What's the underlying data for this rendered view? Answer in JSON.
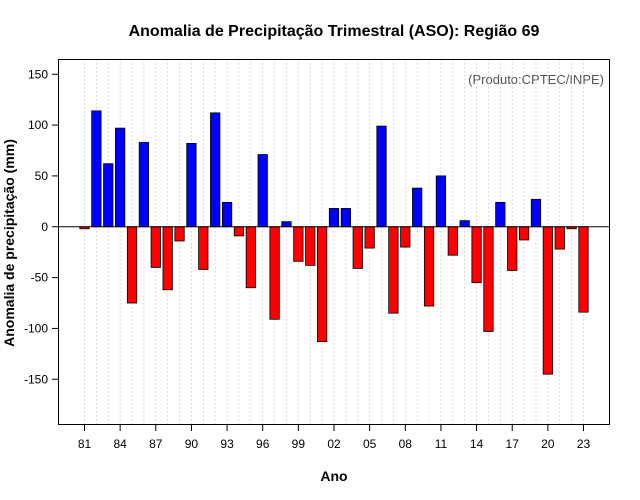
{
  "chart_data": {
    "type": "bar",
    "title": "Anomalia de Precipitação Trimestral (ASO): Região 69",
    "xlabel": "Ano",
    "ylabel": "Anomalia de precipitação (mm)",
    "credit": "(Produto:CPTEC/INPE)",
    "ylim": [
      -195,
      165
    ],
    "yticks": [
      -150,
      -100,
      -50,
      0,
      50,
      100,
      150
    ],
    "xticks": [
      "81",
      "84",
      "87",
      "90",
      "93",
      "96",
      "99",
      "02",
      "05",
      "08",
      "11",
      "14",
      "17",
      "20",
      "23"
    ],
    "grid": "vertical dotted",
    "colors": {
      "positive": "#0000ff",
      "negative": "#ff0000",
      "zero_line": "#000000",
      "grid": "#bbbbbb"
    },
    "categories": [
      "1981",
      "1982",
      "1983",
      "1984",
      "1985",
      "1986",
      "1987",
      "1988",
      "1989",
      "1990",
      "1991",
      "1992",
      "1993",
      "1994",
      "1995",
      "1996",
      "1997",
      "1998",
      "1999",
      "2000",
      "2001",
      "2002",
      "2003",
      "2004",
      "2005",
      "2006",
      "2007",
      "2008",
      "2009",
      "2010",
      "2011",
      "2012",
      "2013",
      "2014",
      "2015",
      "2016",
      "2017",
      "2018",
      "2019",
      "2020",
      "2021",
      "2022",
      "2023"
    ],
    "values": [
      -2,
      114,
      62,
      97,
      -75,
      83,
      -40,
      -62,
      -14,
      82,
      -42,
      112,
      24,
      -9,
      -60,
      71,
      -91,
      5,
      -34,
      -38,
      -113,
      18,
      18,
      -41,
      -21,
      99,
      -85,
      -20,
      38,
      -78,
      50,
      -28,
      6,
      -55,
      -103,
      24,
      -43,
      -13,
      27,
      -145,
      -22,
      -2,
      -84
    ]
  }
}
